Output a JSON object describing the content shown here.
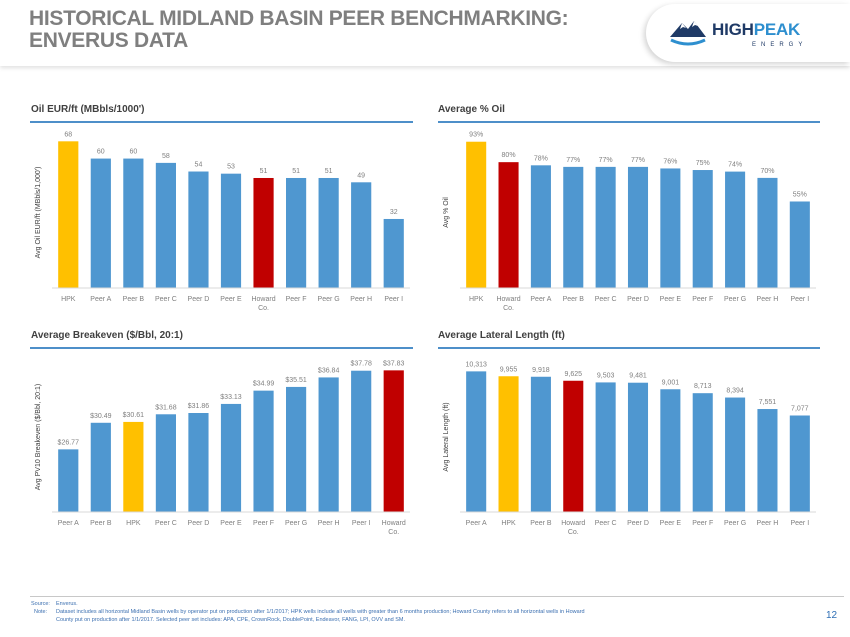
{
  "header": {
    "title_line1": "HISTORICAL MIDLAND BASIN PEER BENCHMARKING:",
    "title_line2": "ENVERUS DATA",
    "logo_high": "HIGH",
    "logo_peak": "PEAK",
    "logo_sub": "ENERGY"
  },
  "colors": {
    "blue": "#4f97d0",
    "gold": "#ffc000",
    "red": "#c00000",
    "title_gray": "#7f7f7f",
    "rule_blue": "#4d8fc9",
    "label_gray": "#7f7f7f"
  },
  "chart_data": [
    {
      "id": "eur",
      "type": "bar",
      "title": "Oil EUR/ft (MBbls/1000')",
      "ylabel": "Avg Oil EUR/ft (MBbls/1,000')",
      "xlabel": "",
      "categories": [
        "HPK",
        "Peer A",
        "Peer B",
        "Peer C",
        "Peer D",
        "Peer E",
        "Howard Co.",
        "Peer F",
        "Peer G",
        "Peer H",
        "Peer I"
      ],
      "values": [
        68,
        60,
        60,
        58,
        54,
        53,
        51,
        51,
        51,
        49,
        32
      ],
      "labels": [
        "68",
        "60",
        "60",
        "58",
        "54",
        "53",
        "51",
        "51",
        "51",
        "49",
        "32"
      ],
      "colors": [
        "gold",
        "blue",
        "blue",
        "blue",
        "blue",
        "blue",
        "red",
        "blue",
        "blue",
        "blue",
        "blue"
      ],
      "ylim": [
        0,
        70
      ]
    },
    {
      "id": "oil",
      "type": "bar",
      "title": "Average % Oil",
      "ylabel": "Avg % Oil",
      "xlabel": "",
      "categories": [
        "HPK",
        "Howard Co.",
        "Peer A",
        "Peer B",
        "Peer C",
        "Peer D",
        "Peer E",
        "Peer F",
        "Peer G",
        "Peer H",
        "Peer I"
      ],
      "values": [
        93,
        80,
        78,
        77,
        77,
        77,
        76,
        75,
        74,
        70,
        55
      ],
      "labels": [
        "93%",
        "80%",
        "78%",
        "77%",
        "77%",
        "77%",
        "76%",
        "75%",
        "74%",
        "70%",
        "55%"
      ],
      "colors": [
        "gold",
        "red",
        "blue",
        "blue",
        "blue",
        "blue",
        "blue",
        "blue",
        "blue",
        "blue",
        "blue"
      ],
      "ylim": [
        0,
        96
      ]
    },
    {
      "id": "breakeven",
      "type": "bar",
      "title": "Average Breakeven ($/Bbl, 20:1)",
      "ylabel": "Avg PV10 Breakeven ($/Bbl, 20:1)",
      "xlabel": "",
      "categories": [
        "Peer A",
        "Peer B",
        "HPK",
        "Peer C",
        "Peer D",
        "Peer E",
        "Peer F",
        "Peer G",
        "Peer H",
        "Peer I",
        "Howard Co."
      ],
      "values": [
        26.77,
        30.49,
        30.61,
        31.68,
        31.86,
        33.13,
        34.99,
        35.51,
        36.84,
        37.78,
        37.83
      ],
      "labels": [
        "$26.77",
        "$30.49",
        "$30.61",
        "$31.68",
        "$31.86",
        "$33.13",
        "$34.99",
        "$35.51",
        "$36.84",
        "$37.78",
        "$37.83"
      ],
      "colors": [
        "blue",
        "blue",
        "gold",
        "blue",
        "blue",
        "blue",
        "blue",
        "blue",
        "blue",
        "blue",
        "red"
      ],
      "ylim": [
        18,
        39
      ]
    },
    {
      "id": "lateral",
      "type": "bar",
      "title": "Average Lateral Length (ft)",
      "ylabel": "Avg Lateral Length (ft)",
      "xlabel": "",
      "categories": [
        "Peer A",
        "HPK",
        "Peer B",
        "Howard Co.",
        "Peer C",
        "Peer D",
        "Peer E",
        "Peer F",
        "Peer G",
        "Peer H",
        "Peer I"
      ],
      "values": [
        10313,
        9955,
        9918,
        9625,
        9503,
        9481,
        9001,
        8713,
        8394,
        7551,
        7077
      ],
      "labels": [
        "10,313",
        "9,955",
        "9,918",
        "9,625",
        "9,503",
        "9,481",
        "9,001",
        "8,713",
        "8,394",
        "7,551",
        "7,077"
      ],
      "colors": [
        "blue",
        "gold",
        "blue",
        "red",
        "blue",
        "blue",
        "blue",
        "blue",
        "blue",
        "blue",
        "blue"
      ],
      "ylim": [
        0,
        11000
      ]
    }
  ],
  "footer": {
    "source_label": "Source:",
    "source_text": "Enverus.",
    "note_label": "Note:",
    "note_line1": "Dataset includes all horizontal Midland Basin wells by operator put on production after 1/1/2017; HPK wells include all wells with greater than 6 months production; Howard County refers to all horizontal wells in Howard",
    "note_line2": "County put on production after 1/1/2017. Selected peer set includes: APA, CPE, CrownRock, DoublePoint, Endeavor, FANG, LPI, OVV and SM.",
    "page_number": "12"
  }
}
